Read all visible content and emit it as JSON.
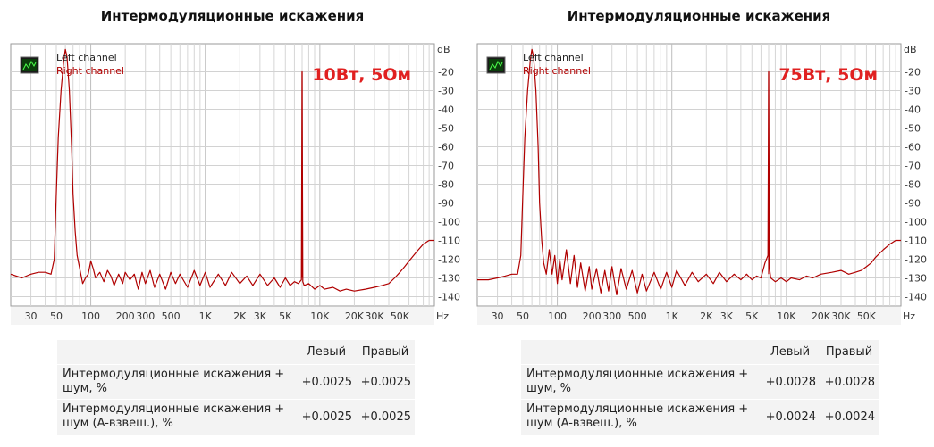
{
  "chart_data": [
    {
      "type": "line",
      "title": "Интермодуляционные искажения",
      "annotation": "10Вт, 5Ом",
      "xscale": "log",
      "xlim": [
        20,
        100000
      ],
      "ylim": [
        -145,
        -5
      ],
      "x_unit": "Hz",
      "y_unit": "dB",
      "x_ticks": [
        {
          "v": 30,
          "label": "30"
        },
        {
          "v": 50,
          "label": "50"
        },
        {
          "v": 100,
          "label": "100"
        },
        {
          "v": 200,
          "label": "200"
        },
        {
          "v": 300,
          "label": "300"
        },
        {
          "v": 500,
          "label": "500"
        },
        {
          "v": 1000,
          "label": "1K"
        },
        {
          "v": 2000,
          "label": "2K"
        },
        {
          "v": 3000,
          "label": "3K"
        },
        {
          "v": 5000,
          "label": "5K"
        },
        {
          "v": 10000,
          "label": "10K"
        },
        {
          "v": 20000,
          "label": "20K"
        },
        {
          "v": 30000,
          "label": "30K"
        },
        {
          "v": 50000,
          "label": "50K"
        }
      ],
      "y_ticks": [
        -20,
        -30,
        -40,
        -50,
        -60,
        -70,
        -80,
        -90,
        -100,
        -110,
        -120,
        -130,
        -140
      ],
      "legend": [
        "Left channel",
        "Right channel"
      ],
      "series": [
        {
          "name": "Right channel",
          "color": "#b00000",
          "points": [
            [
              20,
              -128
            ],
            [
              25,
              -130
            ],
            [
              30,
              -128
            ],
            [
              35,
              -127
            ],
            [
              40,
              -127
            ],
            [
              45,
              -128
            ],
            [
              48,
              -120
            ],
            [
              50,
              -85
            ],
            [
              52,
              -55
            ],
            [
              55,
              -30
            ],
            [
              58,
              -14
            ],
            [
              60,
              -8
            ],
            [
              62,
              -12
            ],
            [
              65,
              -30
            ],
            [
              68,
              -60
            ],
            [
              70,
              -85
            ],
            [
              73,
              -105
            ],
            [
              76,
              -118
            ],
            [
              80,
              -125
            ],
            [
              85,
              -133
            ],
            [
              90,
              -130
            ],
            [
              95,
              -128
            ],
            [
              100,
              -121
            ],
            [
              105,
              -125
            ],
            [
              110,
              -130
            ],
            [
              120,
              -127
            ],
            [
              130,
              -132
            ],
            [
              140,
              -126
            ],
            [
              150,
              -129
            ],
            [
              160,
              -134
            ],
            [
              175,
              -128
            ],
            [
              190,
              -133
            ],
            [
              200,
              -127
            ],
            [
              220,
              -131
            ],
            [
              240,
              -128
            ],
            [
              260,
              -136
            ],
            [
              280,
              -127
            ],
            [
              300,
              -133
            ],
            [
              330,
              -126
            ],
            [
              360,
              -135
            ],
            [
              400,
              -128
            ],
            [
              450,
              -136
            ],
            [
              500,
              -127
            ],
            [
              550,
              -133
            ],
            [
              600,
              -128
            ],
            [
              700,
              -135
            ],
            [
              800,
              -126
            ],
            [
              900,
              -134
            ],
            [
              1000,
              -127
            ],
            [
              1100,
              -135
            ],
            [
              1300,
              -128
            ],
            [
              1500,
              -134
            ],
            [
              1700,
              -127
            ],
            [
              2000,
              -133
            ],
            [
              2300,
              -129
            ],
            [
              2600,
              -134
            ],
            [
              3000,
              -128
            ],
            [
              3500,
              -134
            ],
            [
              4000,
              -130
            ],
            [
              4500,
              -135
            ],
            [
              5000,
              -130
            ],
            [
              5500,
              -134
            ],
            [
              6000,
              -132
            ],
            [
              6500,
              -133
            ],
            [
              6900,
              -131
            ],
            [
              7000,
              -20
            ],
            [
              7100,
              -132
            ],
            [
              7300,
              -134
            ],
            [
              8000,
              -133
            ],
            [
              9000,
              -136
            ],
            [
              10000,
              -134
            ],
            [
              11000,
              -136
            ],
            [
              13000,
              -135
            ],
            [
              15000,
              -137
            ],
            [
              17000,
              -136
            ],
            [
              20000,
              -137
            ],
            [
              25000,
              -136
            ],
            [
              30000,
              -135
            ],
            [
              35000,
              -134
            ],
            [
              40000,
              -133
            ],
            [
              45000,
              -130
            ],
            [
              50000,
              -127
            ],
            [
              55000,
              -124
            ],
            [
              60000,
              -121
            ],
            [
              70000,
              -116
            ],
            [
              80000,
              -112
            ],
            [
              90000,
              -110
            ],
            [
              100000,
              -110
            ]
          ]
        },
        {
          "name": "Left channel",
          "color": "#b00000",
          "points": [
            [
              7000,
              -130
            ],
            [
              7000,
              -20
            ]
          ]
        }
      ]
    },
    {
      "type": "line",
      "title": "Интермодуляционные искажения",
      "annotation": "75Вт, 5Ом",
      "xscale": "log",
      "xlim": [
        20,
        100000
      ],
      "ylim": [
        -145,
        -5
      ],
      "x_unit": "Hz",
      "y_unit": "dB",
      "x_ticks": [
        {
          "v": 30,
          "label": "30"
        },
        {
          "v": 50,
          "label": "50"
        },
        {
          "v": 100,
          "label": "100"
        },
        {
          "v": 200,
          "label": "200"
        },
        {
          "v": 300,
          "label": "300"
        },
        {
          "v": 500,
          "label": "500"
        },
        {
          "v": 1000,
          "label": "1K"
        },
        {
          "v": 2000,
          "label": "2K"
        },
        {
          "v": 3000,
          "label": "3K"
        },
        {
          "v": 5000,
          "label": "5K"
        },
        {
          "v": 10000,
          "label": "10K"
        },
        {
          "v": 20000,
          "label": "20K"
        },
        {
          "v": 30000,
          "label": "30K"
        },
        {
          "v": 50000,
          "label": "50K"
        }
      ],
      "y_ticks": [
        -20,
        -30,
        -40,
        -50,
        -60,
        -70,
        -80,
        -90,
        -100,
        -110,
        -120,
        -130,
        -140
      ],
      "legend": [
        "Left channel",
        "Right channel"
      ],
      "series": [
        {
          "name": "Right channel",
          "color": "#b00000",
          "points": [
            [
              20,
              -131
            ],
            [
              25,
              -131
            ],
            [
              30,
              -130
            ],
            [
              35,
              -129
            ],
            [
              40,
              -128
            ],
            [
              45,
              -128
            ],
            [
              48,
              -118
            ],
            [
              50,
              -85
            ],
            [
              52,
              -55
            ],
            [
              55,
              -30
            ],
            [
              58,
              -14
            ],
            [
              60,
              -8
            ],
            [
              62,
              -12
            ],
            [
              65,
              -30
            ],
            [
              68,
              -60
            ],
            [
              70,
              -90
            ],
            [
              73,
              -110
            ],
            [
              76,
              -122
            ],
            [
              80,
              -128
            ],
            [
              85,
              -115
            ],
            [
              90,
              -128
            ],
            [
              95,
              -118
            ],
            [
              100,
              -133
            ],
            [
              105,
              -120
            ],
            [
              110,
              -131
            ],
            [
              120,
              -115
            ],
            [
              130,
              -133
            ],
            [
              140,
              -118
            ],
            [
              150,
              -135
            ],
            [
              160,
              -122
            ],
            [
              175,
              -137
            ],
            [
              190,
              -124
            ],
            [
              200,
              -136
            ],
            [
              220,
              -125
            ],
            [
              240,
              -138
            ],
            [
              260,
              -126
            ],
            [
              280,
              -137
            ],
            [
              300,
              -124
            ],
            [
              330,
              -139
            ],
            [
              360,
              -125
            ],
            [
              400,
              -136
            ],
            [
              450,
              -126
            ],
            [
              500,
              -138
            ],
            [
              550,
              -128
            ],
            [
              600,
              -137
            ],
            [
              700,
              -127
            ],
            [
              800,
              -136
            ],
            [
              900,
              -127
            ],
            [
              1000,
              -135
            ],
            [
              1100,
              -126
            ],
            [
              1300,
              -134
            ],
            [
              1500,
              -127
            ],
            [
              1700,
              -132
            ],
            [
              2000,
              -128
            ],
            [
              2300,
              -133
            ],
            [
              2600,
              -127
            ],
            [
              3000,
              -132
            ],
            [
              3500,
              -128
            ],
            [
              4000,
              -131
            ],
            [
              4500,
              -128
            ],
            [
              5000,
              -131
            ],
            [
              5500,
              -129
            ],
            [
              6000,
              -130
            ],
            [
              6500,
              -122
            ],
            [
              6900,
              -118
            ],
            [
              7000,
              -20
            ],
            [
              7100,
              -124
            ],
            [
              7300,
              -130
            ],
            [
              8000,
              -132
            ],
            [
              9000,
              -130
            ],
            [
              10000,
              -132
            ],
            [
              11000,
              -130
            ],
            [
              13000,
              -131
            ],
            [
              15000,
              -129
            ],
            [
              17000,
              -130
            ],
            [
              20000,
              -128
            ],
            [
              25000,
              -127
            ],
            [
              30000,
              -126
            ],
            [
              35000,
              -128
            ],
            [
              40000,
              -127
            ],
            [
              45000,
              -126
            ],
            [
              50000,
              -124
            ],
            [
              55000,
              -122
            ],
            [
              60000,
              -119
            ],
            [
              70000,
              -115
            ],
            [
              80000,
              -112
            ],
            [
              90000,
              -110
            ],
            [
              100000,
              -110
            ]
          ]
        },
        {
          "name": "Left channel",
          "color": "#b00000",
          "points": [
            [
              7000,
              -128
            ],
            [
              7000,
              -20
            ]
          ]
        }
      ]
    }
  ],
  "stats": [
    {
      "headers": [
        "Левый",
        "Правый"
      ],
      "rows": [
        {
          "label": "Интермодуляционные искажения + шум, %",
          "left": "+0.0025",
          "right": "+0.0025"
        },
        {
          "label": "Интермодуляционные искажения + шум (A-взвеш.), %",
          "left": "+0.0025",
          "right": "+0.0025"
        }
      ]
    },
    {
      "headers": [
        "Левый",
        "Правый"
      ],
      "rows": [
        {
          "label": "Интермодуляционные искажения + шум, %",
          "left": "+0.0028",
          "right": "+0.0028"
        },
        {
          "label": "Интермодуляционные искажения + шум (A-взвеш.), %",
          "left": "+0.0024",
          "right": "+0.0024"
        }
      ]
    }
  ],
  "colors": {
    "trace": "#b00000",
    "annotation": "#e02020",
    "legend_left": "#222222",
    "legend_right": "#b00000"
  }
}
